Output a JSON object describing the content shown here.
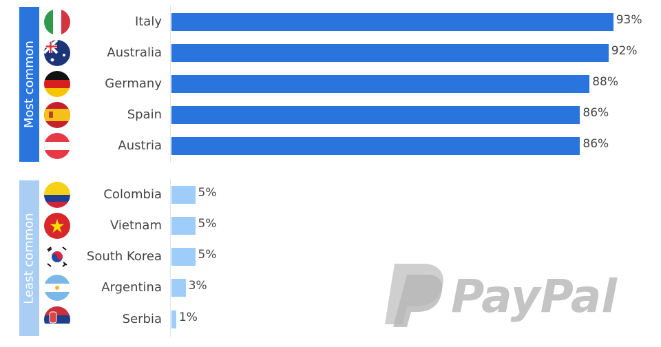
{
  "chart_data": {
    "type": "bar",
    "orientation": "horizontal",
    "unit": "%",
    "groups": [
      {
        "label": "Most common",
        "color": "#2a75dd",
        "categories": [
          "Italy",
          "Australia",
          "Germany",
          "Spain",
          "Austria"
        ],
        "values": [
          93,
          92,
          88,
          86,
          86
        ],
        "value_labels": [
          "93%",
          "92%",
          "88%",
          "86%",
          "86%"
        ]
      },
      {
        "label": "Least common",
        "color": "#9dcdf8",
        "categories": [
          "Colombia",
          "Vietnam",
          "South Korea",
          "Argentina",
          "Serbia"
        ],
        "values": [
          5,
          5,
          5,
          3,
          1
        ],
        "value_labels": [
          "5%",
          "5%",
          "5%",
          "3%",
          "1%"
        ]
      }
    ],
    "section_label_colors": [
      "#2a75dd",
      "#a9cdf3"
    ]
  },
  "watermark": "PayPal",
  "flags": [
    "italy-flag-icon",
    "australia-flag-icon",
    "germany-flag-icon",
    "spain-flag-icon",
    "austria-flag-icon",
    "colombia-flag-icon",
    "vietnam-flag-icon",
    "south-korea-flag-icon",
    "argentina-flag-icon",
    "serbia-flag-icon"
  ]
}
